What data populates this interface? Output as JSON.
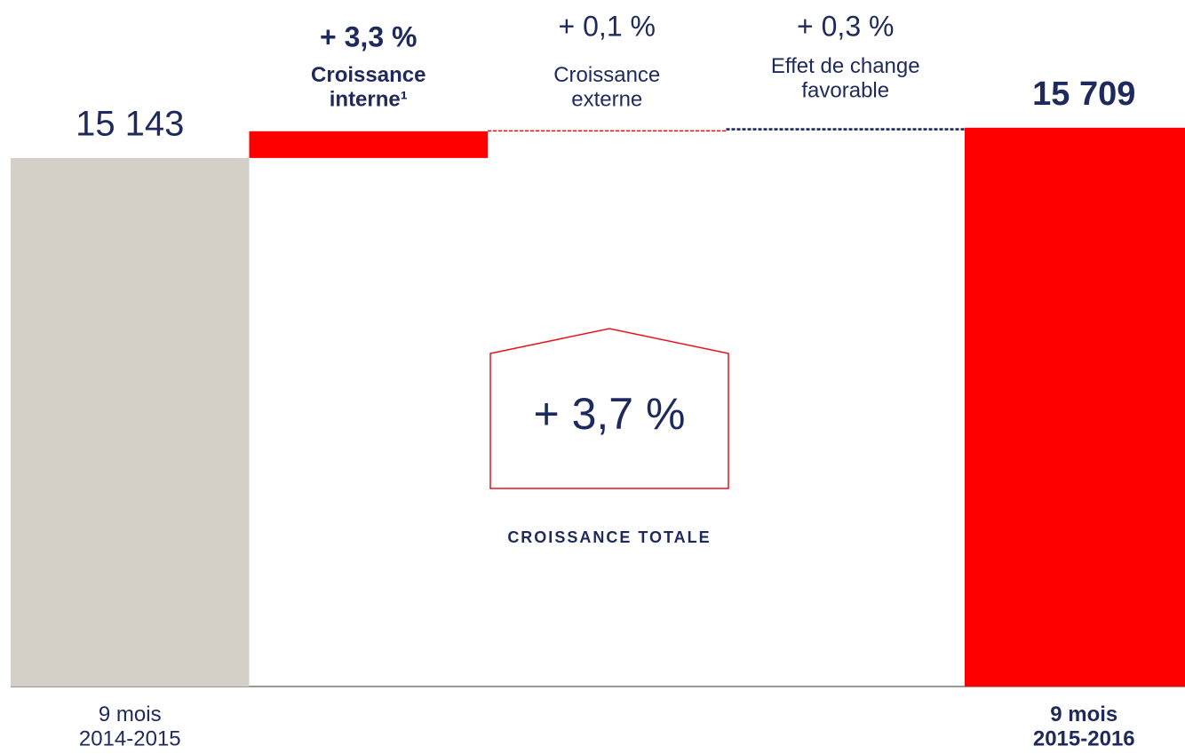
{
  "chart_data": {
    "type": "waterfall",
    "categories": [
      "9 mois\n2014-2015",
      "Croissance\ninterne¹",
      "Croissance\nexterne",
      "Effet de change\nfavorable",
      "9 mois\n2015-2016"
    ],
    "kinds": [
      "total",
      "delta",
      "delta",
      "delta",
      "total"
    ],
    "values": [
      15143,
      500,
      15,
      45,
      15709
    ],
    "value_labels": [
      "15 143",
      null,
      null,
      null,
      "15 709"
    ],
    "colors": [
      "#d4d0c8",
      "#ff0000",
      "#ff0000",
      "#1f2a5c",
      "#ff0000"
    ],
    "changes": {
      "values": [
        null,
        3.3,
        0.1,
        0.3,
        null
      ],
      "value_labels": [
        null,
        "+ 3,3 %",
        "+ 0,1 %",
        "+ 0,3 %",
        null
      ]
    },
    "total_change": {
      "value": 3.7,
      "label": "+ 3,7 %",
      "caption": "CROISSANCE TOTALE"
    },
    "ylim": [
      5250,
      18100
    ]
  }
}
